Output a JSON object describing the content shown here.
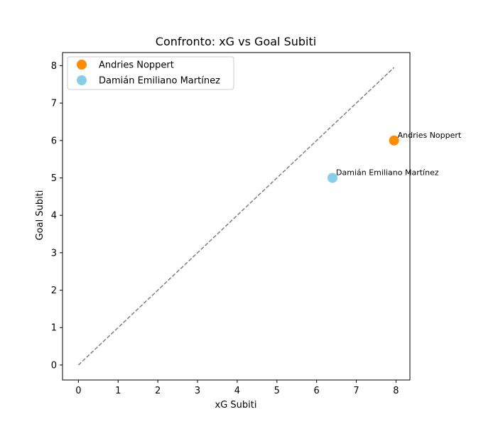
{
  "chart_data": {
    "type": "scatter",
    "title": "Confronto: xG vs Goal Subiti",
    "xlabel": "xG Subiti",
    "ylabel": "Goal Subiti",
    "xlim": [
      -0.4,
      8.35
    ],
    "ylim": [
      -0.4,
      8.35
    ],
    "xticks": [
      "0",
      "1",
      "2",
      "3",
      "4",
      "5",
      "6",
      "7",
      "8"
    ],
    "yticks": [
      "0",
      "1",
      "2",
      "3",
      "4",
      "5",
      "6",
      "7",
      "8"
    ],
    "grid": false,
    "legend_position": "top-left",
    "reference_line": {
      "style": "dashed",
      "color": "#808080",
      "from": [
        0,
        0
      ],
      "to": [
        7.95,
        7.95
      ]
    },
    "series": [
      {
        "name": "Andries Noppert",
        "color": "#ff8c00",
        "x": [
          7.95
        ],
        "y": [
          6
        ],
        "labels": [
          "Andries Noppert"
        ]
      },
      {
        "name": "Damián Emiliano Martínez",
        "color": "#87ceeb",
        "x": [
          6.4
        ],
        "y": [
          5
        ],
        "labels": [
          "Damián Emiliano Martínez"
        ]
      }
    ]
  }
}
